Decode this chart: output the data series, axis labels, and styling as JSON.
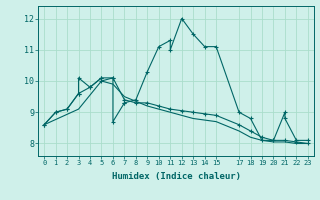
{
  "xlabel": "Humidex (Indice chaleur)",
  "x_ticks": [
    0,
    1,
    2,
    3,
    4,
    5,
    6,
    7,
    8,
    9,
    10,
    11,
    12,
    13,
    14,
    15,
    17,
    18,
    19,
    20,
    21,
    22,
    23
  ],
  "ylim": [
    7.6,
    12.4
  ],
  "xlim": [
    -0.5,
    23.5
  ],
  "yticks": [
    8,
    9,
    10,
    11,
    12
  ],
  "bg_color": "#cff0ea",
  "line_color": "#006666",
  "grid_color": "#aaddcc",
  "line1": [
    [
      0,
      8.6
    ],
    [
      1,
      9.0
    ],
    [
      2,
      9.1
    ],
    [
      3,
      9.6
    ],
    [
      3,
      10.1
    ],
    [
      4,
      9.8
    ],
    [
      5,
      10.1
    ],
    [
      5,
      10.0
    ],
    [
      6,
      10.1
    ],
    [
      6,
      8.7
    ],
    [
      7,
      9.3
    ],
    [
      7,
      9.3
    ],
    [
      8,
      9.4
    ],
    [
      9,
      10.3
    ],
    [
      10,
      11.1
    ],
    [
      11,
      11.3
    ],
    [
      11,
      11.0
    ],
    [
      12,
      12.0
    ],
    [
      13,
      11.5
    ],
    [
      14,
      11.1
    ],
    [
      15,
      11.1
    ],
    [
      17,
      9.0
    ],
    [
      18,
      8.8
    ],
    [
      19,
      8.1
    ],
    [
      20,
      8.1
    ],
    [
      21,
      9.0
    ],
    [
      21,
      8.8
    ],
    [
      22,
      8.1
    ],
    [
      23,
      8.1
    ]
  ],
  "line2": [
    [
      0,
      8.6
    ],
    [
      1,
      9.0
    ],
    [
      2,
      9.1
    ],
    [
      3,
      9.6
    ],
    [
      4,
      9.8
    ],
    [
      5,
      10.1
    ],
    [
      6,
      10.1
    ],
    [
      7,
      9.4
    ],
    [
      8,
      9.3
    ],
    [
      9,
      9.3
    ],
    [
      10,
      9.2
    ],
    [
      11,
      9.1
    ],
    [
      12,
      9.05
    ],
    [
      13,
      9.0
    ],
    [
      14,
      8.95
    ],
    [
      15,
      8.9
    ],
    [
      17,
      8.6
    ],
    [
      18,
      8.4
    ],
    [
      19,
      8.2
    ],
    [
      20,
      8.1
    ],
    [
      21,
      8.1
    ],
    [
      22,
      8.05
    ],
    [
      23,
      8.0
    ]
  ],
  "line3": [
    [
      0,
      8.6
    ],
    [
      3,
      9.1
    ],
    [
      5,
      10.0
    ],
    [
      6,
      9.9
    ],
    [
      7,
      9.5
    ],
    [
      8,
      9.35
    ],
    [
      9,
      9.2
    ],
    [
      10,
      9.1
    ],
    [
      11,
      9.0
    ],
    [
      12,
      8.9
    ],
    [
      13,
      8.8
    ],
    [
      14,
      8.75
    ],
    [
      15,
      8.7
    ],
    [
      17,
      8.4
    ],
    [
      18,
      8.2
    ],
    [
      19,
      8.1
    ],
    [
      20,
      8.05
    ],
    [
      21,
      8.05
    ],
    [
      22,
      8.0
    ],
    [
      23,
      8.0
    ]
  ]
}
